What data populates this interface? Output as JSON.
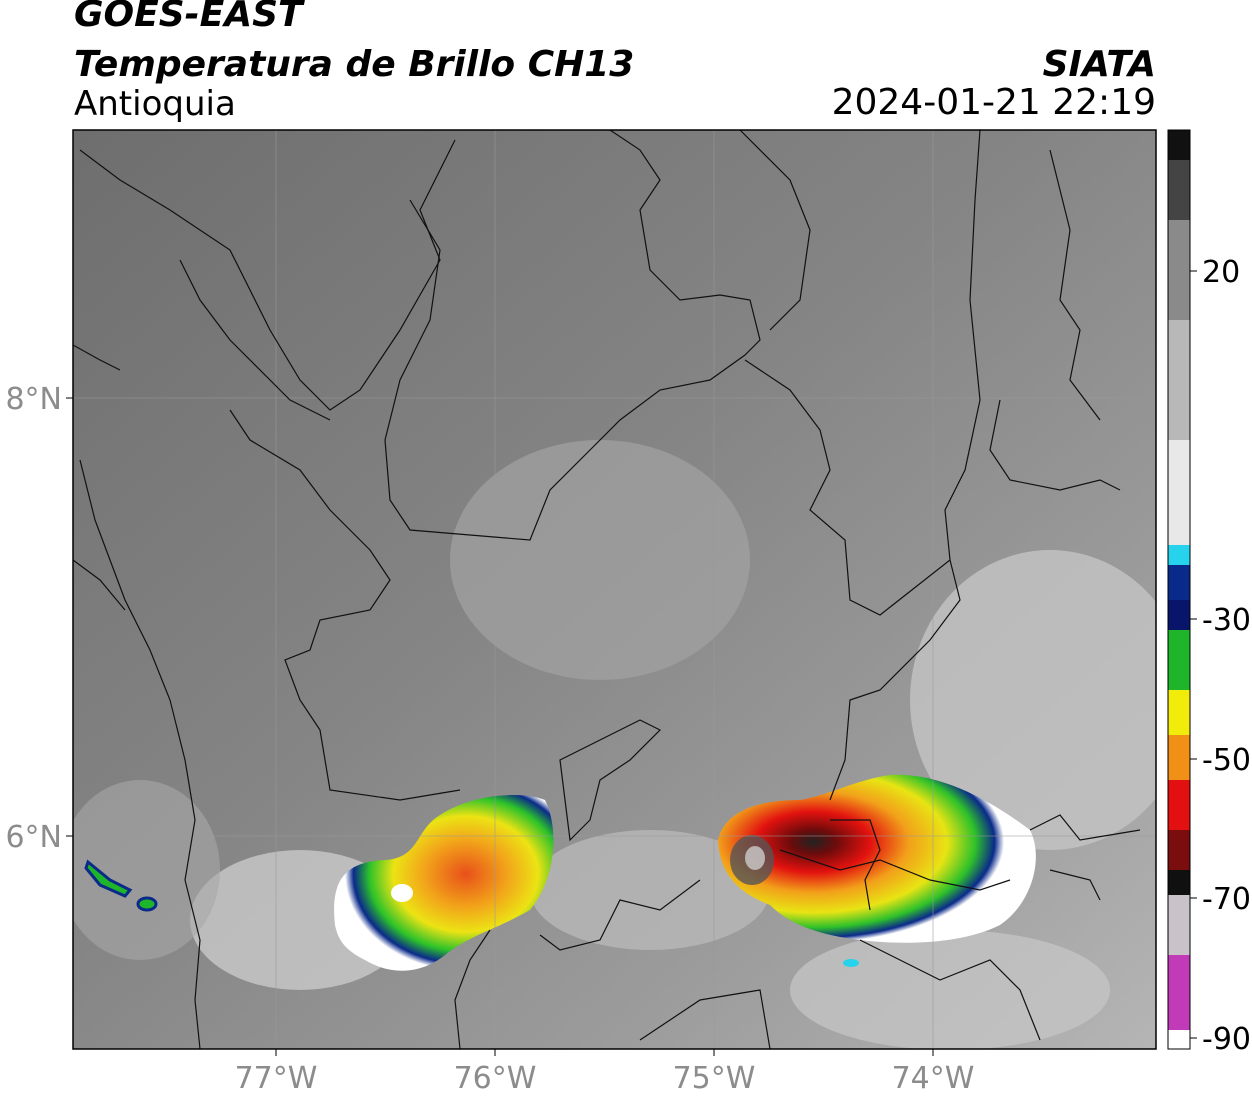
{
  "header": {
    "satellite": "GOES-EAST",
    "product": "Temperatura de Brillo CH13",
    "region": "Antioquia",
    "organization": "SIATA",
    "timestamp": "2024-01-21 22:19"
  },
  "axes": {
    "lat_labels": [
      "8°N",
      "6°N"
    ],
    "lon_labels": [
      "77°W",
      "76°W",
      "75°W",
      "74°W"
    ]
  },
  "colorbar": {
    "tick_labels": [
      "20",
      "-30",
      "-50",
      "-70",
      "-90"
    ],
    "colors": {
      "cyan": "#27d3ec",
      "blue": "#0a2a8a",
      "green": "#1fb52a",
      "yellow": "#f2ec0a",
      "orange": "#f09016",
      "red": "#e21010",
      "dark_red": "#7a0d0d",
      "black": "#101010",
      "magenta": "#c13ab8"
    }
  }
}
